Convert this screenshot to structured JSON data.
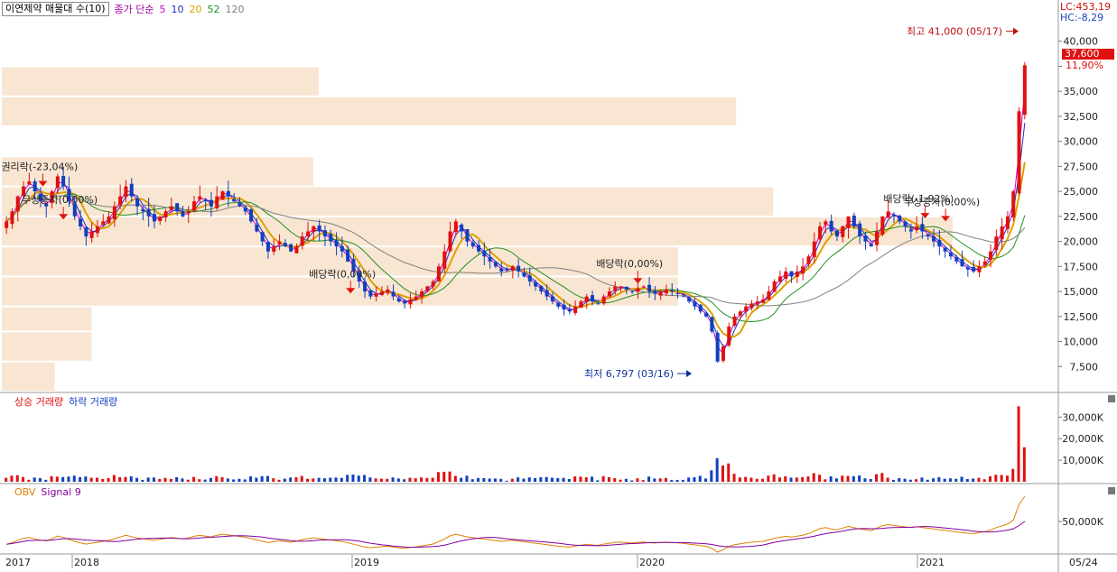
{
  "header": {
    "title": "이연제약 매물대 수(10)",
    "ma_label": "종가 단순",
    "ma_periods": [
      {
        "value": "5",
        "color": "#d000d0"
      },
      {
        "value": "10",
        "color": "#2030c0"
      },
      {
        "value": "20",
        "color": "#e0a000"
      },
      {
        "value": "52",
        "color": "#209020"
      },
      {
        "value": "120",
        "color": "#808080"
      }
    ]
  },
  "right_info": {
    "lc": "LC:453,19",
    "hc": "HC:-8,29",
    "price_tag": "37,600",
    "change_pct": "11,90%"
  },
  "volume_legend": {
    "up": "상승 거래량",
    "down": "하락 거래량"
  },
  "obv_legend": {
    "obv": "OBV",
    "signal": "Signal 9"
  },
  "x_axis_labels": [
    "2017",
    "2018",
    "2019",
    "2020",
    "2021",
    "05/24"
  ],
  "chart_data": {
    "type": "candlestick",
    "y_ticks": [
      7500,
      10000,
      12500,
      15000,
      17500,
      20000,
      22500,
      25000,
      27500,
      30000,
      32500,
      35000,
      37500,
      40000
    ],
    "y_tick_labels": [
      "7,500",
      "10,000",
      "12,500",
      "15,000",
      "17,500",
      "20,000",
      "22,500",
      "25,000",
      "27,500",
      "30,000",
      "32,500",
      "35,000",
      "",
      "40,000"
    ],
    "ylim": [
      5000,
      42500
    ],
    "high_annotation": {
      "label": "최고 41,000 (05/17)",
      "value": 41000,
      "x": 1.0
    },
    "low_annotation": {
      "label": "최저 6,797 (03/16)",
      "value": 6797,
      "x": 0.68
    },
    "event_annotations": [
      {
        "label": "권리락(-23,04%)",
        "x": 0.04,
        "value": 25500
      },
      {
        "label": "무상증자(0,00%)",
        "x": 0.06,
        "value": 22200
      },
      {
        "label": "배당락(0,00%)",
        "x": 0.34,
        "value": 14800
      },
      {
        "label": "배당락(0,00%)",
        "x": 0.62,
        "value": 15800
      },
      {
        "label": "배당락(-1,92%)",
        "x": 0.9,
        "value": 22300
      },
      {
        "label": "무상증자(0,00%)",
        "x": 0.92,
        "value": 22000
      }
    ],
    "volume_profile": [
      {
        "price_low": 5000,
        "price_high": 8000,
        "length": 0.05
      },
      {
        "price_low": 8000,
        "price_high": 11000,
        "length": 0.085
      },
      {
        "price_low": 11000,
        "price_high": 13500,
        "length": 0.085
      },
      {
        "price_low": 13500,
        "price_high": 16500,
        "length": 0.64
      },
      {
        "price_low": 16500,
        "price_high": 19500,
        "length": 0.64
      },
      {
        "price_low": 19500,
        "price_high": 22500,
        "length": 0.9
      },
      {
        "price_low": 22500,
        "price_high": 25500,
        "length": 0.73
      },
      {
        "price_low": 25500,
        "price_high": 28500,
        "length": 0.295
      },
      {
        "price_low": 31500,
        "price_high": 34500,
        "length": 0.695
      },
      {
        "price_low": 34500,
        "price_high": 37500,
        "length": 0.3
      }
    ],
    "weekly_closes": [
      22000,
      23000,
      24500,
      25500,
      26000,
      25000,
      24000,
      23500,
      25000,
      26500,
      25500,
      24000,
      22500,
      21500,
      20500,
      21000,
      21500,
      22000,
      22500,
      23500,
      24500,
      25500,
      24500,
      23500,
      23000,
      22500,
      22000,
      22500,
      23000,
      23500,
      23000,
      22500,
      23000,
      24000,
      24500,
      24000,
      23500,
      24500,
      25000,
      24500,
      24000,
      23500,
      23000,
      22000,
      21000,
      20000,
      19000,
      19500,
      20000,
      19500,
      19000,
      19500,
      20500,
      21000,
      21500,
      21000,
      20500,
      20000,
      19500,
      19000,
      18000,
      17000,
      16000,
      15000,
      14500,
      14800,
      15000,
      15200,
      14500,
      14000,
      13800,
      14200,
      14500,
      15000,
      15500,
      16000,
      17500,
      19000,
      21000,
      22000,
      21000,
      20000,
      19500,
      19000,
      18500,
      18000,
      17500,
      17000,
      17200,
      17500,
      17000,
      16500,
      16000,
      15500,
      15000,
      14500,
      14000,
      13500,
      13200,
      13000,
      13500,
      14000,
      14500,
      14000,
      13800,
      14500,
      15000,
      15500,
      15500,
      15200,
      15000,
      15300,
      15500,
      15000,
      14800,
      15000,
      15200,
      15000,
      14800,
      14500,
      14000,
      13500,
      13000,
      12500,
      11000,
      8000,
      9500,
      11500,
      12500,
      13000,
      13500,
      13800,
      14000,
      14200,
      15000,
      16000,
      16500,
      17000,
      16500,
      17000,
      17500,
      18500,
      20000,
      21500,
      22000,
      21000,
      20500,
      21500,
      22500,
      21500,
      20500,
      20000,
      19500,
      21000,
      22500,
      23000,
      22500,
      22000,
      21500,
      21000,
      21500,
      21000,
      20500,
      20000,
      19500,
      19000,
      18500,
      18000,
      17500,
      17200,
      17000,
      17500,
      18000,
      19000,
      20500,
      21500,
      22500,
      25000,
      33000,
      37600
    ],
    "ma_series": [
      {
        "name": "5",
        "color": "#d000d0"
      },
      {
        "name": "10",
        "color": "#2030c0"
      },
      {
        "name": "20",
        "color": "#e0a000"
      },
      {
        "name": "52",
        "color": "#209020"
      },
      {
        "name": "120",
        "color": "#808080"
      }
    ],
    "volume_ticks": [
      "10,000K",
      "20,000K",
      "30,000K"
    ],
    "volume_max": 36000,
    "obv_ticks": [
      "50,000K"
    ]
  }
}
